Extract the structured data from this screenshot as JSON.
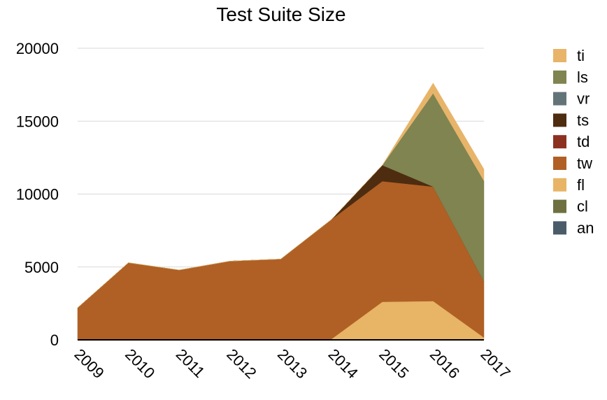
{
  "chart_data": {
    "type": "area",
    "stacked": true,
    "title": "Test Suite Size",
    "xlabel": "",
    "ylabel": "",
    "categories": [
      "2009",
      "2010",
      "2011",
      "2012",
      "2013",
      "2014",
      "2015",
      "2016",
      "2017"
    ],
    "ylim": [
      0,
      20000
    ],
    "yticks": [
      0,
      5000,
      10000,
      15000,
      20000
    ],
    "grid": true,
    "legend_position": "right",
    "series": [
      {
        "name": "an",
        "color": "#4a5c68",
        "values": [
          60,
          60,
          60,
          60,
          60,
          60,
          60,
          60,
          60
        ]
      },
      {
        "name": "cl",
        "color": "#6e7040",
        "values": [
          0,
          0,
          0,
          0,
          0,
          0,
          0,
          0,
          0
        ]
      },
      {
        "name": "fl",
        "color": "#e8b465",
        "values": [
          0,
          0,
          0,
          0,
          0,
          0,
          2550,
          2600,
          100
        ]
      },
      {
        "name": "tw",
        "color": "#b06025",
        "values": [
          2140,
          5230,
          4730,
          5340,
          5480,
          8200,
          8270,
          7850,
          3850
        ]
      },
      {
        "name": "td",
        "color": "#8c3120",
        "values": [
          0,
          0,
          0,
          0,
          0,
          0,
          0,
          0,
          0
        ]
      },
      {
        "name": "ts",
        "color": "#4e2c10",
        "values": [
          0,
          0,
          0,
          0,
          0,
          0,
          1100,
          0,
          0
        ]
      },
      {
        "name": "vr",
        "color": "#627478",
        "values": [
          0,
          0,
          0,
          0,
          0,
          0,
          0,
          0,
          0
        ]
      },
      {
        "name": "ls",
        "color": "#7f8450",
        "values": [
          0,
          0,
          0,
          0,
          0,
          0,
          0,
          6400,
          6900
        ]
      },
      {
        "name": "ti",
        "color": "#e8b46a",
        "values": [
          0,
          0,
          0,
          0,
          0,
          0,
          0,
          700,
          800
        ]
      }
    ]
  }
}
